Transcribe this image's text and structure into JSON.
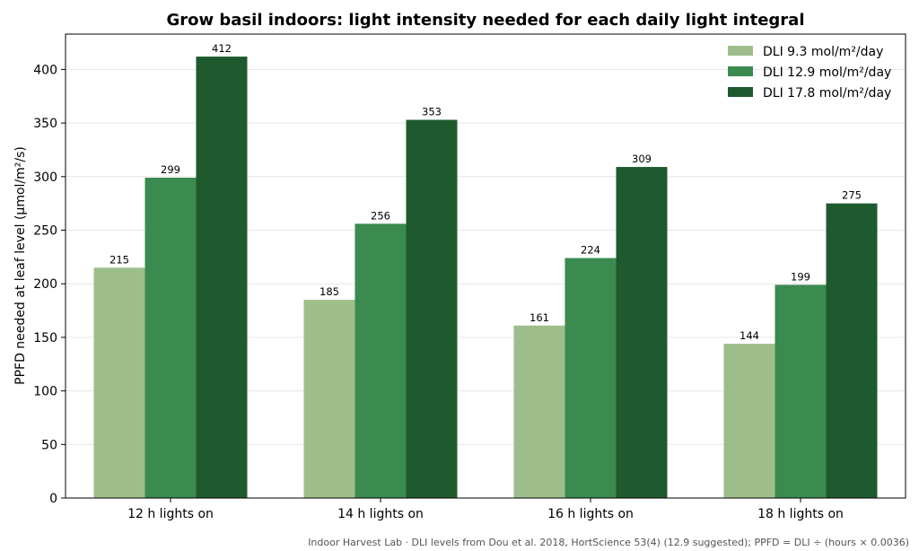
{
  "chart_data": {
    "type": "bar",
    "title": "Grow basil indoors: light intensity needed for each daily light integral",
    "xlabel": "",
    "ylabel": "PPFD needed at leaf level (µmol/m²/s)",
    "categories": [
      "12 h lights on",
      "14 h lights on",
      "16 h lights on",
      "18 h lights on"
    ],
    "series": [
      {
        "name": "DLI 9.3 mol/m²/day",
        "color": "#9dbe8a",
        "values": [
          215,
          185,
          161,
          144
        ]
      },
      {
        "name": "DLI 12.9 mol/m²/day",
        "color": "#3b8a4f",
        "values": [
          299,
          256,
          224,
          199
        ]
      },
      {
        "name": "DLI 17.8 mol/m²/day",
        "color": "#1e5a2e",
        "values": [
          412,
          353,
          309,
          275
        ]
      }
    ],
    "ylim": [
      0,
      433
    ],
    "yticks": [
      0,
      50,
      100,
      150,
      200,
      250,
      300,
      350,
      400
    ],
    "grid": "horizontal",
    "legend_position": "top-right",
    "footnote": "Indoor Harvest Lab · DLI levels from Dou et al. 2018, HortScience 53(4) (12.9 suggested); PPFD = DLI ÷ (hours × 0.0036)"
  }
}
